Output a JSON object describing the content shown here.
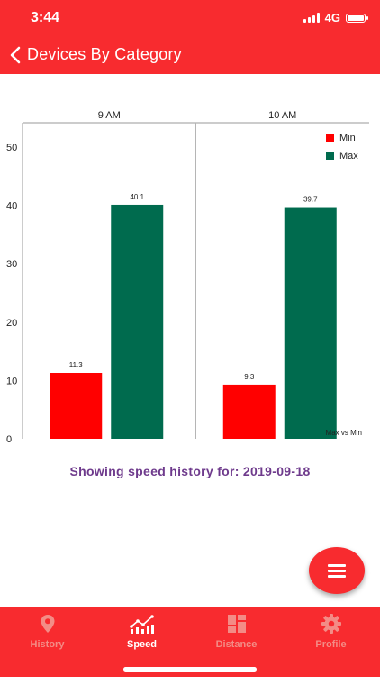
{
  "status_bar": {
    "time": "3:44",
    "network": "4G",
    "battery_icon": "battery-icon",
    "signal_icon": "signal-icon"
  },
  "header": {
    "title": "Devices By Category",
    "back_icon": "chevron-left-icon"
  },
  "colors": {
    "brand": "#f82b2f",
    "min": "#ff0000",
    "max": "#006b4e",
    "caption": "#6e3a8c",
    "tab_inactive": "#f38c86"
  },
  "chart_data": {
    "type": "bar",
    "categories": [
      "9 AM",
      "10 AM"
    ],
    "series": [
      {
        "name": "Min",
        "values": [
          11.3,
          9.3
        ]
      },
      {
        "name": "Max",
        "values": [
          40.1,
          39.7
        ]
      }
    ],
    "ylim": [
      0,
      50
    ],
    "yticks": [
      "0",
      "10",
      "20",
      "30",
      "40",
      "50"
    ],
    "value_labels": [
      [
        "11.3",
        "9.3"
      ],
      [
        "40.1",
        "39.7"
      ]
    ],
    "legend_position": "top-right",
    "annotation": "Max vs Min",
    "grid": false
  },
  "caption": "Showing speed history for: 2019-09-18",
  "fab": {
    "icon": "menu-icon"
  },
  "tabs": [
    {
      "label": "History",
      "icon": "location-pin-icon"
    },
    {
      "label": "Speed",
      "icon": "line-chart-icon"
    },
    {
      "label": "Distance",
      "icon": "dashboard-grid-icon"
    },
    {
      "label": "Profile",
      "icon": "gear-icon"
    }
  ]
}
